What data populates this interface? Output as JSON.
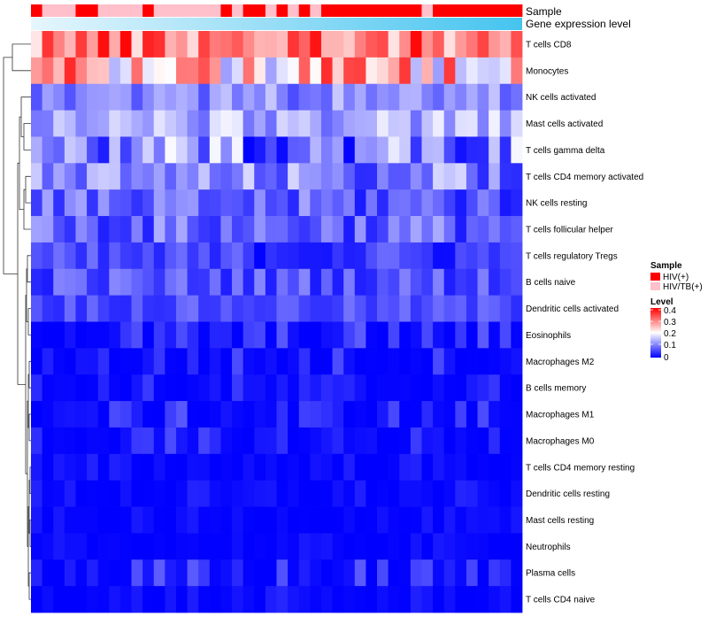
{
  "chart_data": {
    "type": "heatmap",
    "title": "",
    "annotation_tracks": [
      {
        "name": "Sample",
        "label": "Sample"
      },
      {
        "name": "Gene expression level",
        "label": "Gene expression level"
      }
    ],
    "rows": [
      "T cells CD8",
      "Monocytes",
      "NK cells activated",
      "Mast cells activated",
      "T cells gamma delta",
      "T cells CD4 memory activated",
      "NK cells resting",
      "T cells follicular helper",
      "T cells regulatory  Tregs",
      "B cells naive",
      "Dendritic cells activated",
      "Eosinophils",
      "Macrophages M2",
      "B cells memory",
      "Macrophages M1",
      "Macrophages M0",
      "T cells CD4 memory resting",
      "Dendritic cells resting",
      "Mast cells resting",
      "Neutrophils",
      "Plasma cells",
      "T cells CD4 naive"
    ],
    "n_columns": 44,
    "sample_groups": [
      "HIV(+)",
      "HIV/TB(+)",
      "HIV/TB(+)",
      "HIV/TB(+)",
      "HIV(+)",
      "HIV(+)",
      "HIV/TB(+)",
      "HIV/TB(+)",
      "HIV/TB(+)",
      "HIV/TB(+)",
      "HIV(+)",
      "HIV/TB(+)",
      "HIV/TB(+)",
      "HIV/TB(+)",
      "HIV/TB(+)",
      "HIV/TB(+)",
      "HIV/TB(+)",
      "HIV(+)",
      "HIV/TB(+)",
      "HIV(+)",
      "HIV(+)",
      "HIV/TB(+)",
      "HIV(+)",
      "HIV/TB(+)",
      "HIV(+)",
      "HIV/TB(+)",
      "HIV(+)",
      "HIV(+)",
      "HIV(+)",
      "HIV(+)",
      "HIV(+)",
      "HIV(+)",
      "HIV(+)",
      "HIV(+)",
      "HIV(+)",
      "HIV/TB(+)",
      "HIV(+)",
      "HIV(+)",
      "HIV(+)",
      "HIV(+)",
      "HIV(+)",
      "HIV(+)",
      "HIV(+)",
      "HIV(+)"
    ],
    "row_value_ranges": [
      [
        0.22,
        0.4
      ],
      [
        0.12,
        0.38
      ],
      [
        0.06,
        0.16
      ],
      [
        0.08,
        0.19
      ],
      [
        0.0,
        0.2
      ],
      [
        0.03,
        0.17
      ],
      [
        0.01,
        0.13
      ],
      [
        0.02,
        0.14
      ],
      [
        0.0,
        0.09
      ],
      [
        0.02,
        0.11
      ],
      [
        0.03,
        0.09
      ],
      [
        0.0,
        0.08
      ],
      [
        0.0,
        0.07
      ],
      [
        0.0,
        0.05
      ],
      [
        0.0,
        0.07
      ],
      [
        0.0,
        0.06
      ],
      [
        0.0,
        0.03
      ],
      [
        0.0,
        0.03
      ],
      [
        0.0,
        0.02
      ],
      [
        0.0,
        0.02
      ],
      [
        0.0,
        0.08
      ],
      [
        0.0,
        0.03
      ]
    ],
    "legend": {
      "sample_title": "Sample",
      "sample_entries": [
        {
          "label": "HIV(+)",
          "color": "#ff0000"
        },
        {
          "label": "HIV/TB(+)",
          "color": "#ffc0cb"
        }
      ],
      "level_title": "Level",
      "level_ticks": [
        "0.4",
        "0.3",
        "0.2",
        "0.1",
        "0"
      ],
      "level_range": [
        0,
        0.4
      ]
    },
    "colors": {
      "low": "#0000ff",
      "mid": "#ffffff",
      "high": "#ff0000",
      "hiv": "#ff0000",
      "hivtb": "#ffc0cb",
      "expr_start": "#e6f6fd",
      "expr_end": "#45c4ef"
    }
  }
}
